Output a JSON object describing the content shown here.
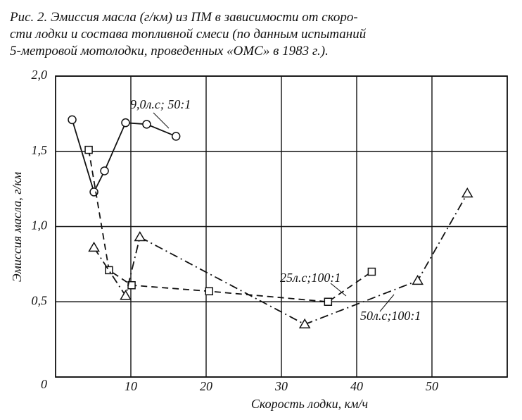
{
  "chart_data": {
    "type": "line",
    "caption": [
      "Рис. 2. Эмиссия масла (г/км) из ПМ в зависимости от скоро-",
      "сти лодки и состава топливной смеси (по данным испытаний",
      "5-метровой мотолодки, проведенных «ОМС» в 1983 г.)."
    ],
    "xlabel": "Скорость лодки, км/ч",
    "ylabel": "Эмиссия масла, г/км",
    "xlim": [
      0,
      60
    ],
    "ylim": [
      0,
      2.0
    ],
    "xticks": [
      10,
      20,
      30,
      40,
      50
    ],
    "yticks": [
      0,
      {
        "value": 0.5,
        "label": "0,5"
      },
      {
        "value": 1.0,
        "label": "1,0"
      },
      {
        "value": 1.5,
        "label": "1,5"
      },
      {
        "value": 2.0,
        "label": "2,0"
      }
    ],
    "grid": true,
    "series": [
      {
        "name": "9,0л.с; 50:1",
        "color": "#111",
        "marker": "circle",
        "dash": "solid",
        "x": [
          2.2,
          5.1,
          6.5,
          9.3,
          12.1,
          16
        ],
        "values": [
          1.71,
          1.23,
          1.37,
          1.69,
          1.68,
          1.6
        ]
      },
      {
        "name": "25л.с;100:1",
        "color": "#111",
        "marker": "square",
        "dash": "dashed",
        "x": [
          4.4,
          7.1,
          10.1,
          20.4,
          36.2,
          42
        ],
        "values": [
          1.51,
          0.71,
          0.61,
          0.57,
          0.5,
          0.7
        ]
      },
      {
        "name": "50л.с;100:1",
        "color": "#111",
        "marker": "triangle",
        "dash": "dashdot",
        "x": [
          5.1,
          9.3,
          11.2,
          33.1,
          48.1,
          54.7
        ],
        "values": [
          0.86,
          0.54,
          0.93,
          0.35,
          0.64,
          1.22
        ]
      }
    ]
  }
}
